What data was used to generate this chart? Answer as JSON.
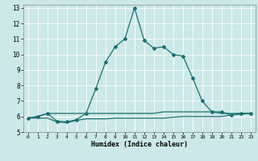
{
  "xlabel": "Humidex (Indice chaleur)",
  "background_color": "#cce8e8",
  "grid_color": "#ffffff",
  "line_color": "#1a7070",
  "xlim": [
    -0.5,
    23.5
  ],
  "ylim": [
    5,
    13.2
  ],
  "yticks": [
    5,
    6,
    7,
    8,
    9,
    10,
    11,
    12,
    13
  ],
  "xticks": [
    0,
    1,
    2,
    3,
    4,
    5,
    6,
    7,
    8,
    9,
    10,
    11,
    12,
    13,
    14,
    15,
    16,
    17,
    18,
    19,
    20,
    21,
    22,
    23
  ],
  "main_x": [
    0,
    1,
    2,
    3,
    4,
    5,
    6,
    7,
    8,
    9,
    10,
    11,
    12,
    13,
    14,
    15,
    16,
    17,
    18,
    19,
    20,
    21,
    22,
    23
  ],
  "main_y": [
    5.9,
    6.0,
    6.2,
    5.7,
    5.65,
    5.8,
    6.2,
    7.8,
    9.5,
    10.5,
    11.0,
    13.0,
    10.9,
    10.4,
    10.5,
    10.0,
    9.9,
    8.5,
    7.0,
    6.3,
    6.3,
    6.1,
    6.2,
    6.2
  ],
  "flat1_x": [
    0,
    1,
    2,
    3,
    4,
    5,
    6,
    7,
    8,
    9,
    10,
    11,
    12,
    13,
    14,
    15,
    16,
    17,
    18,
    19,
    20,
    21,
    22,
    23
  ],
  "flat1_y": [
    5.9,
    6.0,
    6.2,
    6.2,
    6.2,
    6.2,
    6.2,
    6.2,
    6.2,
    6.2,
    6.2,
    6.2,
    6.2,
    6.2,
    6.3,
    6.3,
    6.3,
    6.3,
    6.3,
    6.3,
    6.2,
    6.2,
    6.2,
    6.2
  ],
  "flat2_x": [
    0,
    1,
    2,
    3,
    4,
    5,
    6,
    7,
    8,
    9,
    10,
    11,
    12,
    13,
    14,
    15,
    16,
    17,
    18,
    19,
    20,
    21,
    22,
    23
  ],
  "flat2_y": [
    5.9,
    5.9,
    5.9,
    5.65,
    5.6,
    5.75,
    5.85,
    5.85,
    5.85,
    5.9,
    5.9,
    5.9,
    5.9,
    5.9,
    5.9,
    5.95,
    6.0,
    6.0,
    6.0,
    6.0,
    6.0,
    6.1,
    6.15,
    6.2
  ]
}
